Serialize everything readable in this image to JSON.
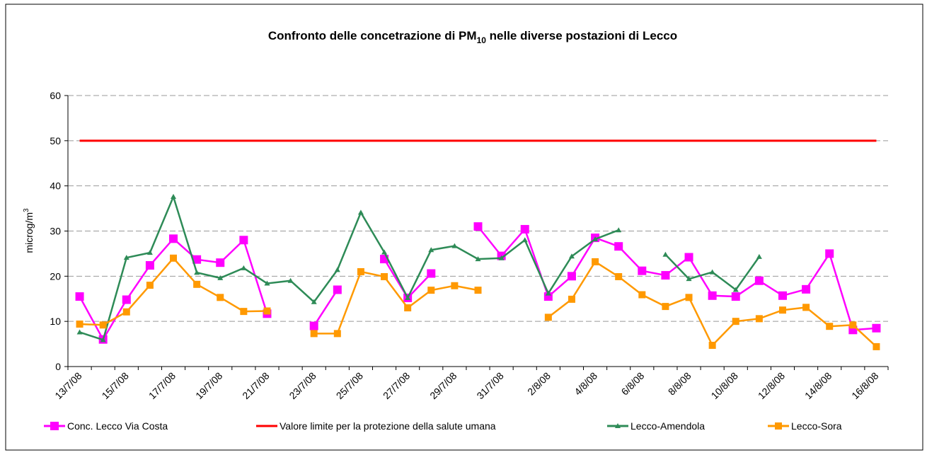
{
  "chart_data": {
    "type": "line",
    "title": [
      "Confronto delle concetrazione di PM",
      "10",
      " nelle diverse postazioni di Lecco"
    ],
    "y_label": [
      "microg/m",
      "3"
    ],
    "categories": [
      "13/7/08",
      null,
      "15/7/08",
      null,
      "17/7/08",
      null,
      "19/7/08",
      null,
      "21/7/08",
      null,
      "23/7/08",
      null,
      "25/7/08",
      null,
      "27/7/08",
      null,
      "29/7/08",
      null,
      "31/7/08",
      null,
      "2/8/08",
      null,
      "4/8/08",
      null,
      "6/8/08",
      null,
      "8/8/08",
      null,
      "10/8/08",
      null,
      "12/8/08",
      null,
      "14/8/08",
      null,
      "16/8/08"
    ],
    "ylim": [
      0,
      60
    ],
    "yticks": [
      0,
      10,
      20,
      30,
      40,
      50,
      60
    ],
    "grid": true,
    "series": [
      {
        "name": "Conc. Lecco Via Costa",
        "color": "#ff00ff",
        "marker": "square",
        "values": [
          15.5,
          6,
          14.8,
          22.4,
          28.3,
          23.7,
          23,
          28,
          11.7,
          null,
          9,
          17,
          null,
          23.8,
          15.2,
          20.6,
          null,
          31,
          24.5,
          30.4,
          15.5,
          20,
          28.5,
          26.6,
          21.2,
          20.2,
          24.2,
          15.7,
          15.5,
          19,
          15.7,
          17.1,
          25,
          8.1,
          8.5
        ]
      },
      {
        "name": "Valore limite per la protezione della salute umana",
        "color": "#ff0000",
        "marker": "none",
        "values": [
          50,
          50,
          50,
          50,
          50,
          50,
          50,
          50,
          50,
          50,
          50,
          50,
          50,
          50,
          50,
          50,
          50,
          50,
          50,
          50,
          50,
          50,
          50,
          50,
          50,
          50,
          50,
          50,
          50,
          50,
          50,
          50,
          50,
          50,
          50
        ]
      },
      {
        "name": "Lecco-Amendola",
        "color": "#2e8b57",
        "marker": "triangle",
        "values": [
          7.6,
          5.9,
          24.1,
          25.2,
          37.6,
          20.8,
          19.6,
          21.8,
          18.4,
          19,
          14.3,
          21.4,
          34.1,
          25.3,
          15.2,
          25.8,
          26.7,
          23.8,
          24,
          28,
          16.2,
          24.4,
          28.2,
          30.2,
          null,
          24.8,
          19.4,
          20.9,
          17,
          24.3,
          null,
          null,
          null,
          null,
          null
        ]
      },
      {
        "name": "Lecco-Sora",
        "color": "#ff9900",
        "marker": "square-small",
        "values": [
          9.4,
          9.2,
          12.1,
          18,
          24,
          18.2,
          15.3,
          12.2,
          12.3,
          null,
          7.3,
          7.3,
          21,
          19.9,
          13,
          16.9,
          17.9,
          16.9,
          null,
          null,
          10.9,
          14.9,
          23.2,
          19.9,
          15.9,
          13.3,
          15.3,
          4.7,
          10,
          10.6,
          12.5,
          13.1,
          8.9,
          9.2,
          4.4
        ]
      }
    ]
  }
}
